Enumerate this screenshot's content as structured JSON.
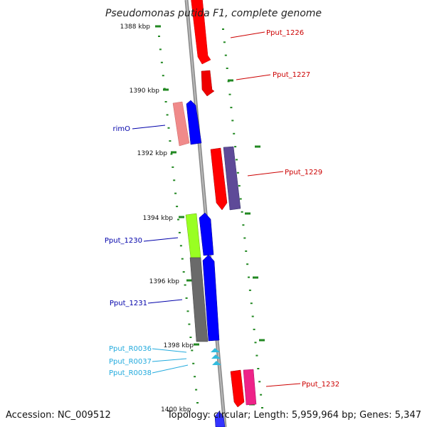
{
  "title": "Pseudomonas putida F1, complete genome",
  "footer": {
    "accession": "Accession: NC_009512",
    "summary": "Topology: circular; Length: 5,959,964 bp; Genes: 5,347"
  },
  "colors": {
    "forward_red": "#ff0000",
    "forward_dark_red": "#e00000",
    "reverse_blue": "#0000ff",
    "pink": "#f08a8a",
    "purple": "#5e4a98",
    "lime": "#99ff22",
    "gray_gene": "#6a6a6a",
    "magenta": "#ee2288",
    "rna_cyan": "#33bbdd",
    "label_red": "#cc0000",
    "label_blue": "#0000aa",
    "label_cyan": "#22aadd",
    "tick_green": "#228822",
    "backbone": "#888888"
  },
  "ticks": [
    "1388 kbp",
    "1390 kbp",
    "1392 kbp",
    "1394 kbp",
    "1396 kbp",
    "1398 kbp",
    "1400 kbp"
  ],
  "genes": [
    {
      "label": "Pput_1226",
      "color": "forward_red",
      "label_color": "label_red",
      "strand": "+"
    },
    {
      "label": "Pput_1227",
      "color": "forward_red",
      "label_color": "label_red",
      "strand": "+"
    },
    {
      "label": "rimO",
      "color": "reverse_blue",
      "label_color": "label_blue",
      "strand": "-"
    },
    {
      "label": "Pput_1229",
      "color": "forward_red",
      "label_color": "label_red",
      "strand": "+"
    },
    {
      "label": "Pput_1230",
      "color": "reverse_blue",
      "label_color": "label_blue",
      "strand": "-"
    },
    {
      "label": "Pput_1231",
      "color": "reverse_blue",
      "label_color": "label_blue",
      "strand": "-"
    },
    {
      "label": "Pput_R0036",
      "color": "rna_cyan",
      "label_color": "label_cyan",
      "strand": "-"
    },
    {
      "label": "Pput_R0037",
      "color": "rna_cyan",
      "label_color": "label_cyan",
      "strand": "-"
    },
    {
      "label": "Pput_R0038",
      "color": "rna_cyan",
      "label_color": "label_cyan",
      "strand": "-"
    },
    {
      "label": "Pput_1232",
      "color": "forward_red",
      "label_color": "label_red",
      "strand": "+"
    }
  ]
}
